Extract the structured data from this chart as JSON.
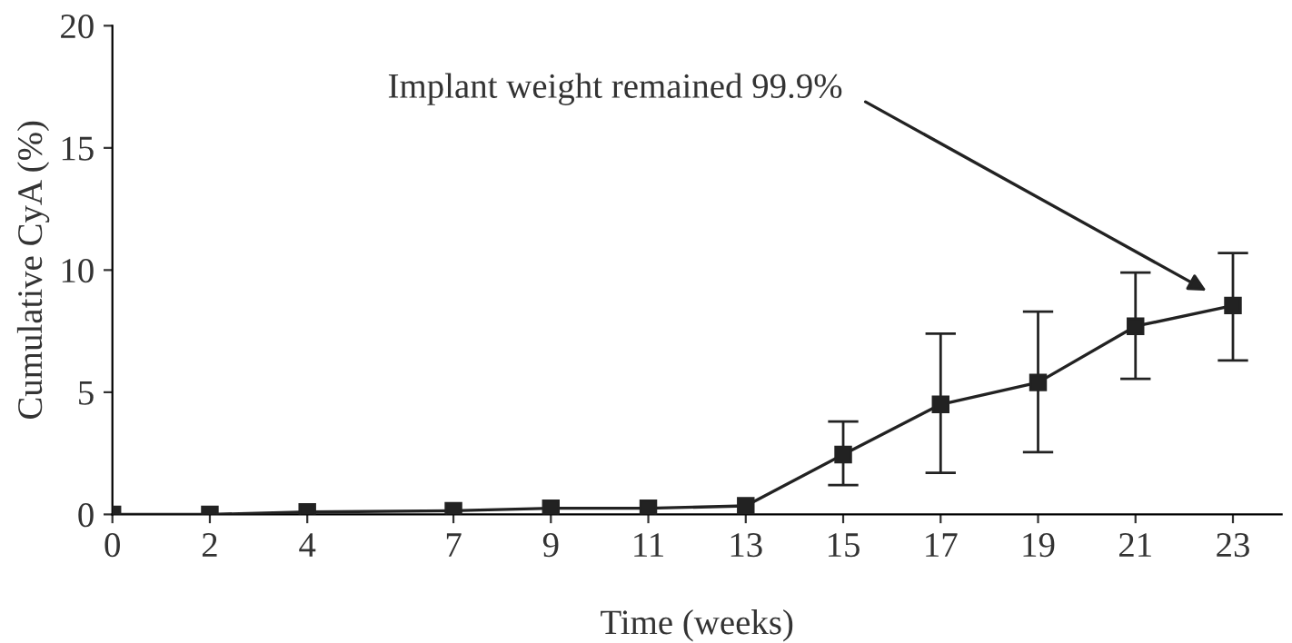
{
  "chart_data": {
    "type": "line",
    "xlabel": "Time (weeks)",
    "ylabel": "Cumulative CyA (%)",
    "x": [
      0,
      2,
      4,
      7,
      9,
      11,
      13,
      15,
      17,
      19,
      21,
      23
    ],
    "series": [
      {
        "color": "#222222",
        "values": [
          0,
          0,
          0.1,
          0.15,
          0.25,
          0.25,
          0.35,
          2.45,
          4.5,
          5.4,
          7.7,
          8.55
        ],
        "errors": [
          null,
          null,
          null,
          null,
          null,
          null,
          null,
          [
            1.2,
            3.8
          ],
          [
            1.7,
            7.4
          ],
          [
            2.55,
            8.3
          ],
          [
            5.55,
            9.9
          ],
          [
            6.3,
            10.7
          ]
        ]
      }
    ],
    "marker": "square",
    "line_style": "solid",
    "grid": false,
    "legend": false,
    "xlim": [
      0,
      24
    ],
    "xticks": [
      0,
      2,
      4,
      7,
      9,
      11,
      13,
      15,
      17,
      19,
      21,
      23
    ],
    "ylim": [
      0,
      20
    ],
    "yticks": [
      0,
      5,
      10,
      15,
      20
    ],
    "annotations": [
      "Implant weight remained 99.9%"
    ]
  }
}
